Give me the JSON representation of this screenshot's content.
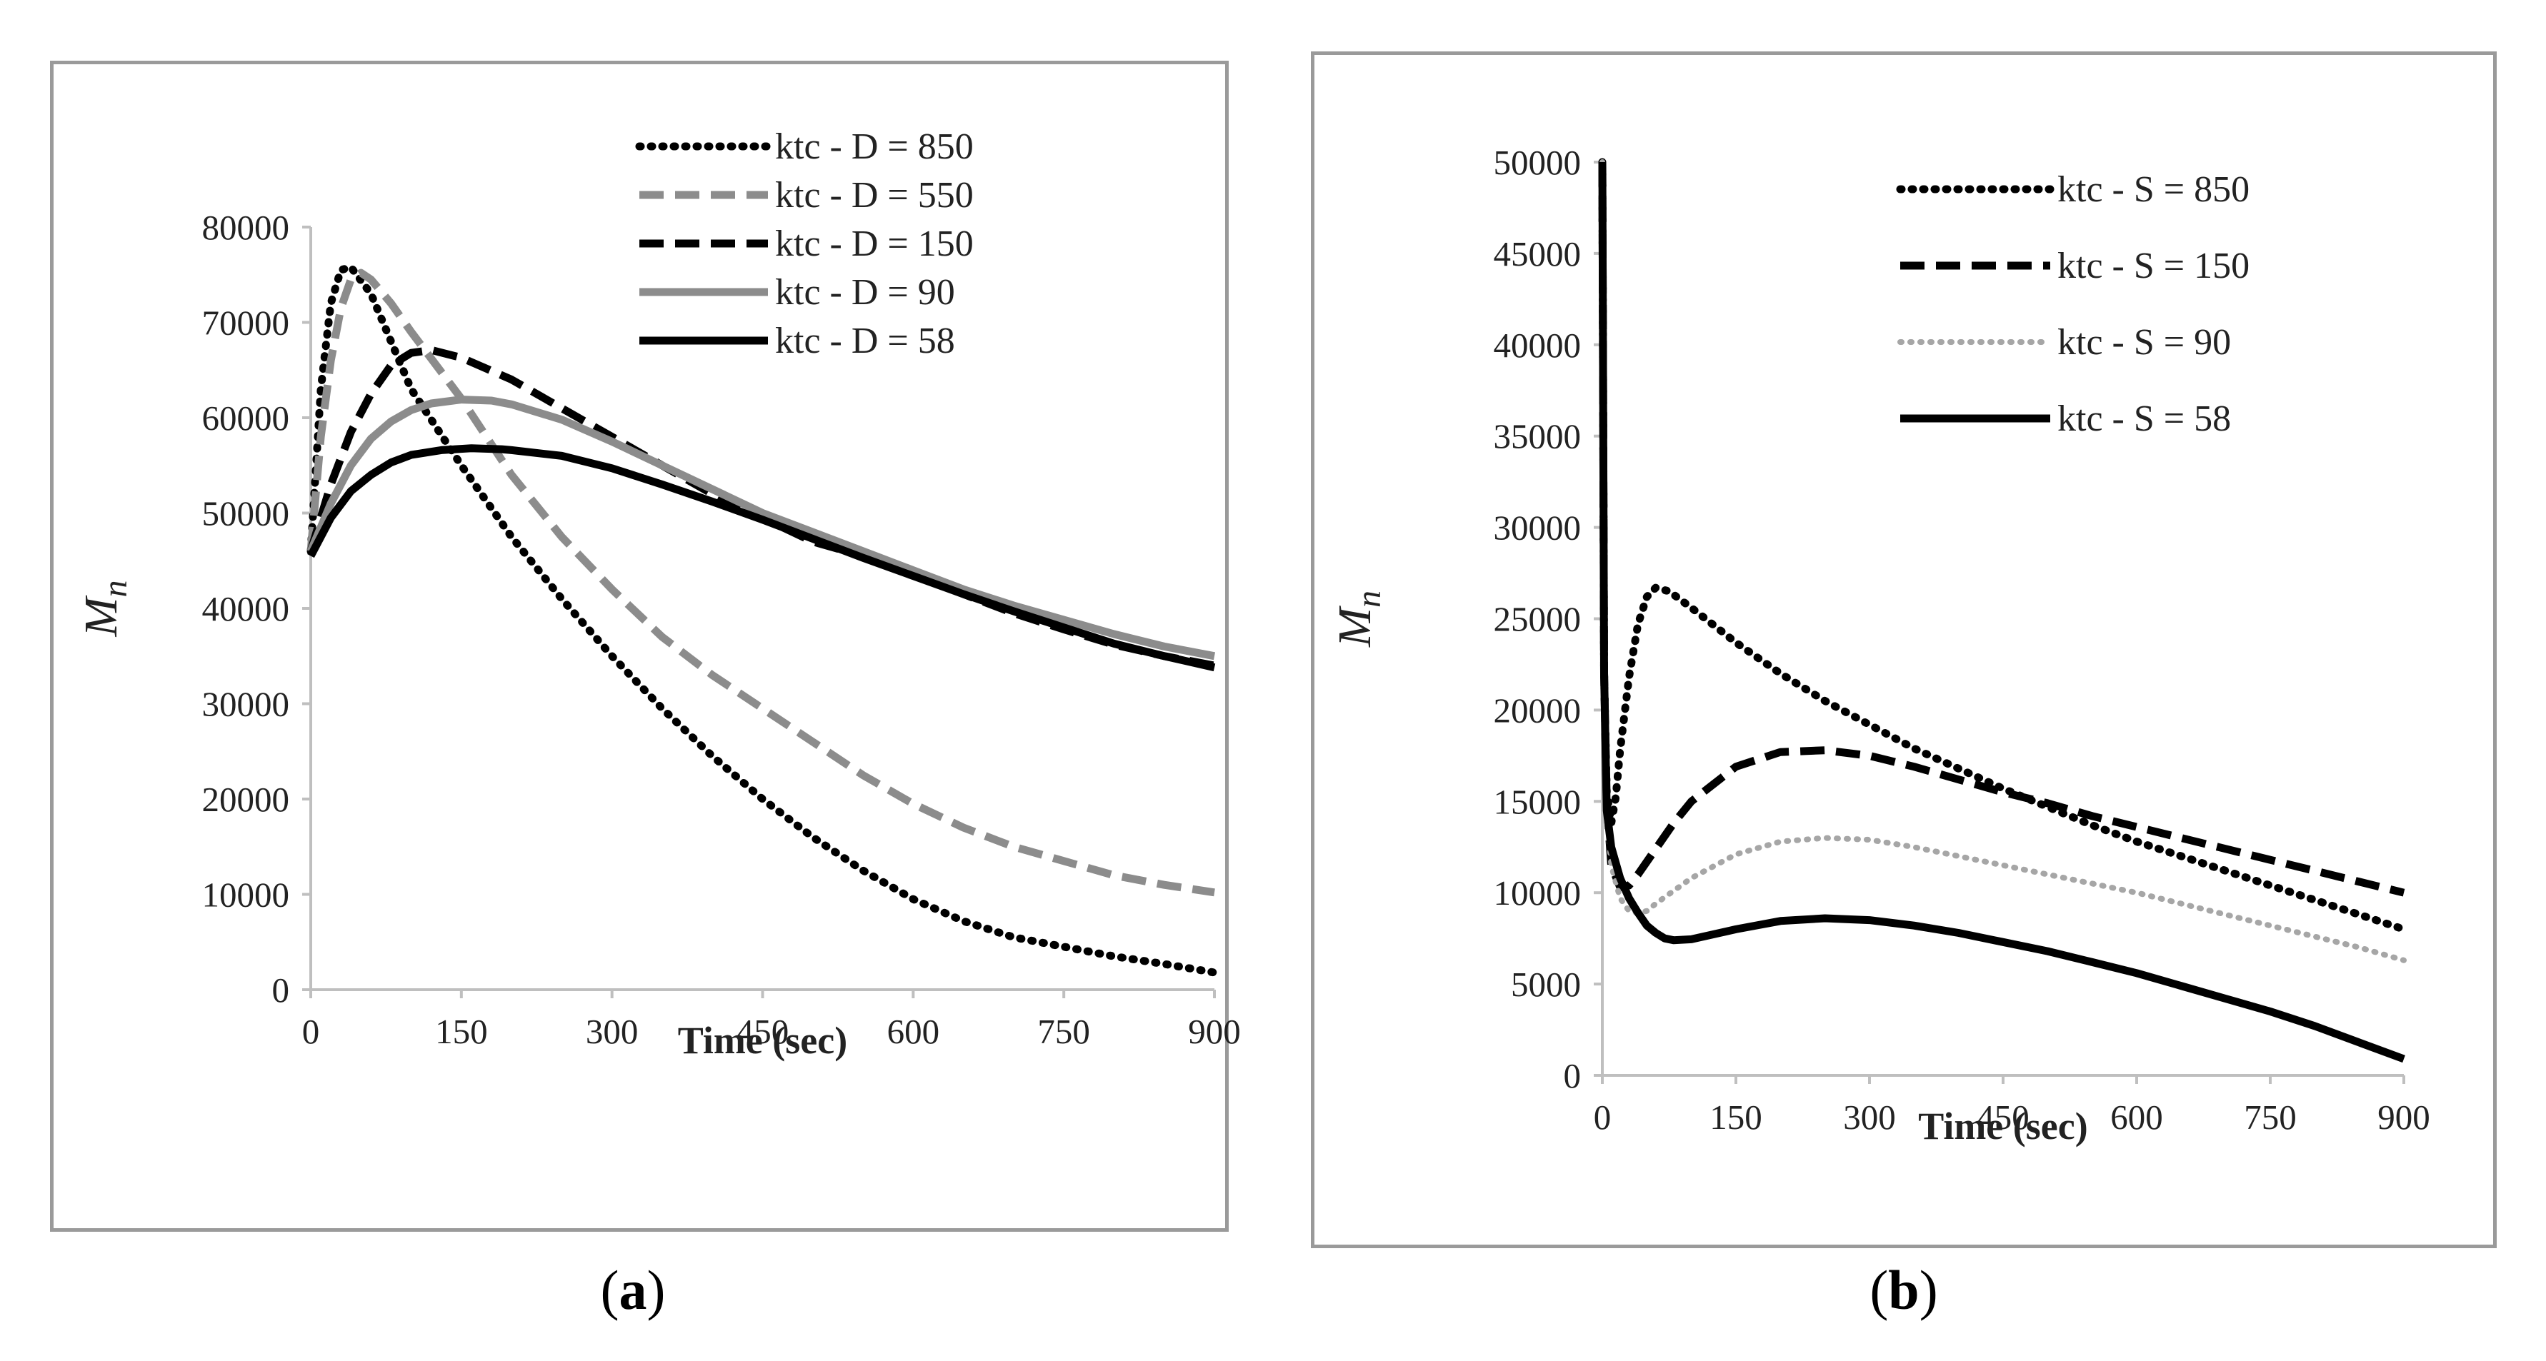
{
  "colors": {
    "black": "#000000",
    "gray": "#8c8c8c",
    "lightgray": "#a6a6a6",
    "axis": "#bfbfbf",
    "border": "#9a9a9a"
  },
  "chart_data": [
    {
      "type": "line",
      "panel": "a",
      "caption_open": "(",
      "caption_letter": "a",
      "caption_close": ")",
      "xlabel": "Time (sec)",
      "ylabel_main": "M",
      "ylabel_sub": "n",
      "xlim": [
        0,
        900
      ],
      "ylim": [
        0,
        80000
      ],
      "xticks": [
        0,
        150,
        300,
        450,
        600,
        750,
        900
      ],
      "yticks": [
        0,
        10000,
        20000,
        30000,
        40000,
        50000,
        60000,
        70000,
        80000
      ],
      "legend_position": "top-right",
      "series": [
        {
          "name": "ktc - D = 850",
          "style": "dotted",
          "color": "#000000",
          "x": [
            0,
            10,
            20,
            30,
            40,
            60,
            80,
            100,
            150,
            200,
            250,
            300,
            350,
            400,
            450,
            500,
            550,
            600,
            650,
            700,
            750,
            800,
            850,
            900
          ],
          "y": [
            46000,
            63000,
            72000,
            75500,
            75800,
            73000,
            68000,
            63000,
            55000,
            47500,
            41000,
            35000,
            29500,
            24500,
            20000,
            16000,
            12500,
            9500,
            7200,
            5500,
            4500,
            3500,
            2700,
            1800
          ]
        },
        {
          "name": "ktc - D = 550",
          "style": "dashed",
          "color": "#8c8c8c",
          "x": [
            0,
            10,
            20,
            30,
            40,
            50,
            60,
            80,
            100,
            150,
            200,
            250,
            300,
            350,
            400,
            450,
            500,
            550,
            600,
            650,
            700,
            750,
            800,
            850,
            900
          ],
          "y": [
            46000,
            58000,
            66000,
            71500,
            74500,
            75200,
            74500,
            72000,
            69000,
            62000,
            54000,
            47500,
            42000,
            37000,
            33000,
            29500,
            26000,
            22500,
            19500,
            17000,
            15000,
            13500,
            12000,
            11000,
            10200
          ]
        },
        {
          "name": "ktc - D = 150",
          "style": "dashed",
          "color": "#000000",
          "x": [
            0,
            20,
            40,
            60,
            80,
            100,
            120,
            150,
            200,
            250,
            300,
            350,
            400,
            450,
            500,
            550,
            600,
            650,
            700,
            750,
            800,
            850,
            900
          ],
          "y": [
            46000,
            53000,
            58500,
            62500,
            65500,
            66800,
            67100,
            66300,
            64000,
            61000,
            58000,
            55000,
            52000,
            49500,
            47000,
            45500,
            43500,
            41500,
            39500,
            37800,
            36200,
            35000,
            34000
          ]
        },
        {
          "name": "ktc - D = 90",
          "style": "solid",
          "color": "#8c8c8c",
          "x": [
            0,
            20,
            40,
            60,
            80,
            100,
            120,
            150,
            180,
            200,
            250,
            300,
            350,
            400,
            450,
            500,
            550,
            600,
            650,
            700,
            750,
            800,
            850,
            900
          ],
          "y": [
            46000,
            51000,
            55000,
            57800,
            59600,
            60800,
            61500,
            61900,
            61800,
            61400,
            59800,
            57500,
            55000,
            52500,
            50000,
            48000,
            46000,
            44000,
            42000,
            40300,
            38800,
            37300,
            36000,
            35000
          ]
        },
        {
          "name": "ktc - D = 58",
          "style": "solid",
          "color": "#000000",
          "x": [
            0,
            20,
            40,
            60,
            80,
            100,
            130,
            160,
            190,
            200,
            250,
            300,
            350,
            400,
            450,
            500,
            550,
            600,
            650,
            700,
            750,
            800,
            850,
            900
          ],
          "y": [
            45500,
            49500,
            52300,
            54000,
            55300,
            56100,
            56600,
            56800,
            56700,
            56600,
            56000,
            54700,
            53000,
            51200,
            49300,
            47300,
            45300,
            43400,
            41500,
            39700,
            38000,
            36300,
            35000,
            33800
          ]
        }
      ]
    },
    {
      "type": "line",
      "panel": "b",
      "caption_open": "(",
      "caption_letter": "b",
      "caption_close": ")",
      "xlabel": "Time (sec)",
      "ylabel_main": "M",
      "ylabel_sub": "n",
      "xlim": [
        0,
        900
      ],
      "ylim": [
        0,
        50000
      ],
      "xticks": [
        0,
        150,
        300,
        450,
        600,
        750,
        900
      ],
      "yticks": [
        0,
        5000,
        10000,
        15000,
        20000,
        25000,
        30000,
        35000,
        40000,
        45000,
        50000
      ],
      "legend_position": "top-right",
      "series": [
        {
          "name": "ktc - S = 850",
          "style": "dotted",
          "color": "#000000",
          "x": [
            0,
            2,
            5,
            10,
            15,
            20,
            30,
            40,
            50,
            60,
            75,
            100,
            150,
            200,
            250,
            300,
            350,
            400,
            450,
            500,
            550,
            600,
            650,
            700,
            750,
            800,
            850,
            900
          ],
          "y": [
            50000,
            22000,
            15500,
            13800,
            15200,
            17800,
            21800,
            24700,
            26200,
            26700,
            26500,
            25600,
            23700,
            22000,
            20500,
            19200,
            17900,
            16800,
            15700,
            14700,
            13700,
            12800,
            12000,
            11200,
            10400,
            9600,
            8800,
            8000
          ]
        },
        {
          "name": "ktc - S = 150",
          "style": "dashed",
          "color": "#000000",
          "x": [
            0,
            2,
            5,
            10,
            20,
            30,
            40,
            60,
            80,
            100,
            150,
            200,
            250,
            300,
            350,
            400,
            450,
            500,
            550,
            600,
            650,
            700,
            750,
            800,
            850,
            900
          ],
          "y": [
            50000,
            22000,
            15000,
            11500,
            10300,
            10400,
            11000,
            12400,
            13800,
            15000,
            16900,
            17700,
            17800,
            17500,
            16900,
            16200,
            15500,
            14900,
            14200,
            13600,
            13000,
            12400,
            11800,
            11200,
            10600,
            10000
          ]
        },
        {
          "name": "ktc - S = 90",
          "style": "dotted-light",
          "color": "#a6a6a6",
          "x": [
            0,
            2,
            5,
            10,
            20,
            30,
            40,
            50,
            60,
            80,
            100,
            150,
            200,
            250,
            300,
            350,
            400,
            450,
            500,
            550,
            600,
            650,
            700,
            750,
            800,
            850,
            900
          ],
          "y": [
            50000,
            22000,
            14500,
            11500,
            9700,
            9000,
            8900,
            9000,
            9400,
            10100,
            10800,
            12100,
            12800,
            13000,
            12900,
            12500,
            12000,
            11500,
            11000,
            10500,
            10000,
            9400,
            8800,
            8200,
            7600,
            7000,
            6300
          ]
        },
        {
          "name": "ktc - S = 58",
          "style": "solid",
          "color": "#000000",
          "x": [
            0,
            2,
            5,
            10,
            20,
            30,
            40,
            50,
            60,
            70,
            80,
            100,
            150,
            200,
            250,
            300,
            350,
            400,
            450,
            500,
            550,
            600,
            650,
            700,
            750,
            800,
            850,
            900
          ],
          "y": [
            50000,
            22000,
            14500,
            12500,
            10800,
            9700,
            8900,
            8200,
            7800,
            7500,
            7400,
            7450,
            8000,
            8450,
            8600,
            8500,
            8200,
            7800,
            7300,
            6800,
            6200,
            5600,
            4900,
            4200,
            3500,
            2700,
            1800,
            900
          ]
        }
      ]
    }
  ]
}
